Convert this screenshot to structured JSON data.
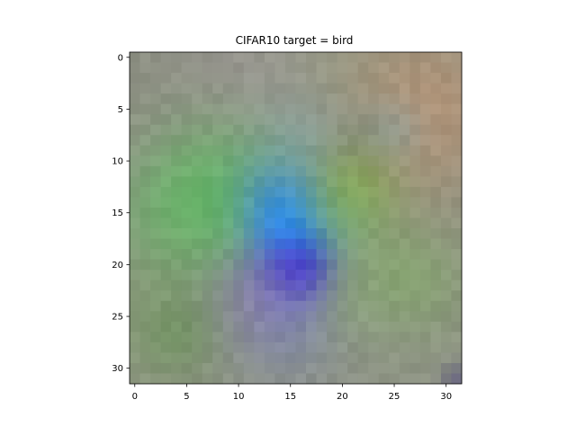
{
  "chart_data": {
    "type": "heatmap",
    "title": "CIFAR10 target = bird",
    "xlabel": "",
    "ylabel": "",
    "grid": false,
    "legend": false,
    "image_size": [
      32,
      32
    ],
    "xlim": [
      -0.5,
      31.5
    ],
    "ylim": [
      31.5,
      -0.5
    ],
    "x_ticks": [
      0,
      5,
      10,
      15,
      20,
      25,
      30
    ],
    "y_ticks": [
      0,
      5,
      10,
      15,
      20,
      25,
      30
    ],
    "background_color": "#8f9384",
    "regions": [
      {
        "center": [
          2,
          1
        ],
        "radius": 5,
        "color": "#8b8e82",
        "strength": 0.45
      },
      {
        "center": [
          9,
          1
        ],
        "radius": 4,
        "color": "#999292",
        "strength": 0.55
      },
      {
        "center": [
          13,
          3
        ],
        "radius": 3,
        "color": "#9f9a98",
        "strength": 0.5
      },
      {
        "center": [
          21,
          3
        ],
        "radius": 4,
        "color": "#8fa088",
        "strength": 0.45
      },
      {
        "center": [
          28,
          5
        ],
        "radius": 6,
        "color": "#c09270",
        "strength": 0.65
      },
      {
        "center": [
          3,
          8
        ],
        "radius": 5,
        "color": "#95928a",
        "strength": 0.35
      },
      {
        "center": [
          16,
          8
        ],
        "radius": 3,
        "color": "#8aa3b0",
        "strength": 0.5
      },
      {
        "center": [
          22,
          8
        ],
        "radius": 2.5,
        "color": "#707a70",
        "strength": 0.45
      },
      {
        "center": [
          25,
          7
        ],
        "radius": 2,
        "color": "#8aaab0",
        "strength": 0.4
      },
      {
        "center": [
          8,
          14
        ],
        "radius": 5,
        "color": "#5ec05e",
        "strength": 0.75
      },
      {
        "center": [
          5,
          15
        ],
        "radius": 4,
        "color": "#62b466",
        "strength": 0.55
      },
      {
        "center": [
          13,
          12
        ],
        "radius": 2.5,
        "color": "#5a9a9a",
        "strength": 0.5
      },
      {
        "center": [
          15,
          15
        ],
        "radius": 3,
        "color": "#3a8cee",
        "strength": 0.75
      },
      {
        "center": [
          15.5,
          17
        ],
        "radius": 2.5,
        "color": "#168cff",
        "strength": 0.95
      },
      {
        "center": [
          21,
          13
        ],
        "radius": 3,
        "color": "#8cb03c",
        "strength": 0.6
      },
      {
        "center": [
          20,
          16
        ],
        "radius": 3,
        "color": "#70b070",
        "strength": 0.45
      },
      {
        "center": [
          15.5,
          21
        ],
        "radius": 2.2,
        "color": "#2a14d8",
        "strength": 0.95
      },
      {
        "center": [
          13,
          23
        ],
        "radius": 3,
        "color": "#6a50d0",
        "strength": 0.6
      },
      {
        "center": [
          15,
          26
        ],
        "radius": 4,
        "color": "#7a88b8",
        "strength": 0.5
      },
      {
        "center": [
          10,
          24
        ],
        "radius": 3,
        "color": "#a08cb0",
        "strength": 0.4
      },
      {
        "center": [
          26,
          22
        ],
        "radius": 4,
        "color": "#7cb05c",
        "strength": 0.55
      },
      {
        "center": [
          22,
          24
        ],
        "radius": 2.5,
        "color": "#8cae78",
        "strength": 0.35
      },
      {
        "center": [
          3,
          25
        ],
        "radius": 5,
        "color": "#7a9e66",
        "strength": 0.45
      },
      {
        "center": [
          4,
          27
        ],
        "radius": 2.5,
        "color": "#608c50",
        "strength": 0.45
      },
      {
        "center": [
          25,
          29
        ],
        "radius": 5,
        "color": "#8e9486",
        "strength": 0.4
      },
      {
        "center": [
          31,
          31
        ],
        "radius": 1,
        "color": "#6a6880",
        "strength": 0.9
      }
    ]
  }
}
